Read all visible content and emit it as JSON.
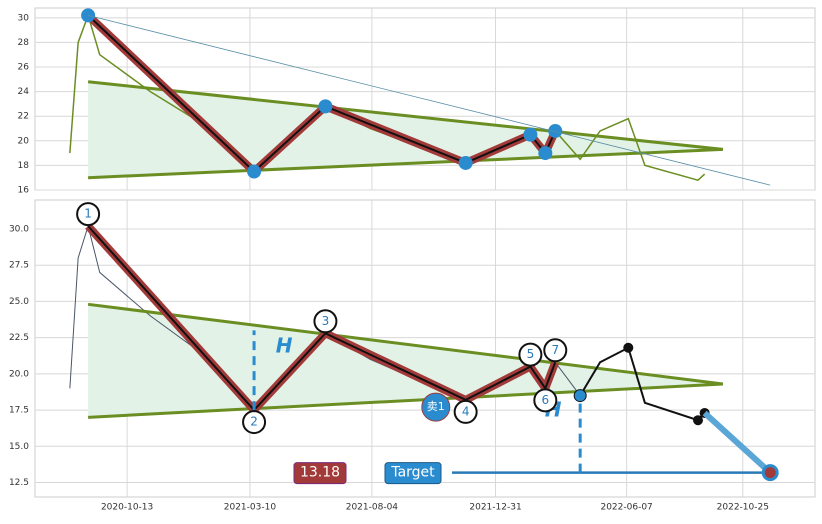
{
  "chart_data": {
    "type": "line",
    "x": [
      "2020-08-05",
      "2020-08-15",
      "2020-08-27",
      "2020-09-10",
      "2020-11-10",
      "2021-01-09",
      "2021-03-15",
      "2021-04-27",
      "2021-06-09",
      "2021-08-02",
      "2021-10-01",
      "2021-11-25",
      "2022-01-05",
      "2022-02-11",
      "2022-03-01",
      "2022-03-13",
      "2022-04-12",
      "2022-05-06",
      "2022-06-09",
      "2022-06-29",
      "2022-09-01",
      "2022-09-09"
    ],
    "values": [
      19,
      28,
      30.2,
      27,
      24,
      21.5,
      17.5,
      20.5,
      22.8,
      21,
      19.5,
      18.2,
      19.5,
      20.5,
      19,
      20.8,
      18.5,
      20.8,
      21.8,
      18,
      16.8,
      17.3
    ],
    "color": "#4a5568",
    "top_color": "#6b8e23",
    "xlim": [
      "2020-06-24",
      "2023-01-20"
    ],
    "xticks": [
      {
        "value": "2020-10-13",
        "label": "2020-10-13"
      },
      {
        "value": "2021-03-10",
        "label": "2021-03-10"
      },
      {
        "value": "2021-08-04",
        "label": "2021-08-04"
      },
      {
        "value": "2021-12-31",
        "label": "2021-12-31"
      },
      {
        "value": "2022-06-07",
        "label": "2022-06-07"
      },
      {
        "value": "2022-10-25",
        "label": "2022-10-25"
      }
    ],
    "panels": [
      {
        "ylim": [
          16,
          30.8
        ],
        "yticks": [
          16,
          18,
          20,
          22,
          24,
          26,
          28,
          30
        ]
      },
      {
        "ylim": [
          11.5,
          32
        ],
        "yticks": [
          12.5,
          {
            "value": 15,
            "label": "15.0"
          },
          17.5,
          {
            "value": 20,
            "label": "20.0"
          },
          22.5,
          {
            "value": 25,
            "label": "25.0"
          },
          27.5,
          {
            "value": 30,
            "label": "30.0"
          }
        ]
      }
    ],
    "grid": true,
    "pivots": [
      {
        "label": "1",
        "x": "2020-08-27",
        "value": 30.2
      },
      {
        "label": "2",
        "x": "2021-03-15",
        "value": 17.5
      },
      {
        "label": "3",
        "x": "2021-06-09",
        "value": 22.8
      },
      {
        "label": "4",
        "x": "2021-11-25",
        "value": 18.2
      },
      {
        "label": "5",
        "x": "2022-02-11",
        "value": 20.5
      },
      {
        "label": "6",
        "x": "2022-03-01",
        "value": 19
      },
      {
        "label": "7",
        "x": "2022-03-13",
        "value": 20.8
      }
    ],
    "trendlines": [
      {
        "x": [
          "2020-08-27",
          "2022-10-01"
        ],
        "values": [
          24.8,
          19.3
        ]
      },
      {
        "x": [
          "2020-08-27",
          "2022-10-01"
        ],
        "values": [
          17,
          19.3
        ]
      }
    ],
    "sell": {
      "label": "卖1",
      "x": "2021-10-20",
      "value": 17.7
    },
    "annotations": [
      "H",
      "H"
    ],
    "target": {
      "label": "Target",
      "x": "2022-11-27",
      "value": 13.18
    }
  }
}
